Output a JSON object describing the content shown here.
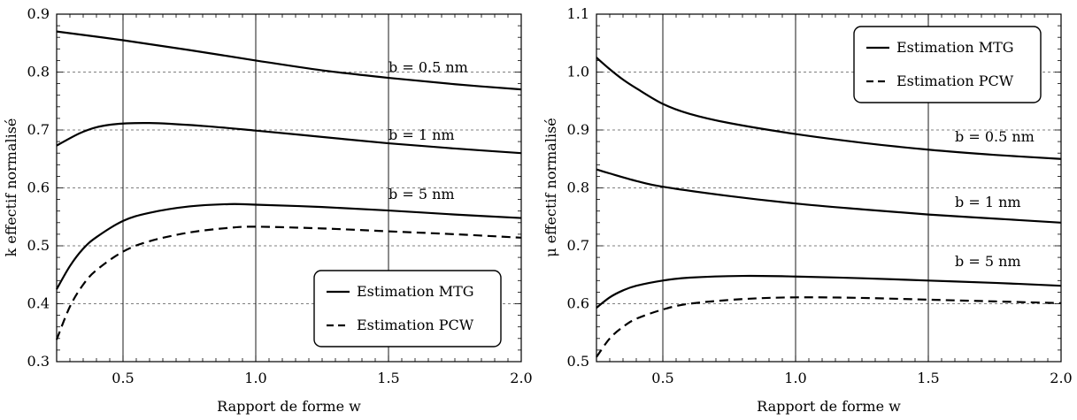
{
  "chart_data": [
    {
      "type": "line",
      "xlabel": "Rapport de forme w",
      "ylabel": "k effectif normalisé",
      "xlim": [
        0.25,
        2.0
      ],
      "ylim": [
        0.3,
        0.9
      ],
      "xticks": [
        "0.5",
        "1.0",
        "1.5",
        "2.0"
      ],
      "yticks": [
        "0.3",
        "0.4",
        "0.5",
        "0.6",
        "0.7",
        "0.8",
        "0.9"
      ],
      "xtick_values": [
        0.5,
        1.0,
        1.5,
        2.0
      ],
      "ytick_values": [
        0.3,
        0.4,
        0.5,
        0.6,
        0.7,
        0.8,
        0.9
      ],
      "grid": "vertical solid at major x ticks, horizontal dashed at major y ticks",
      "legend_position": "bottom-right",
      "legend": [
        {
          "label": "Estimation MTG",
          "style": "solid"
        },
        {
          "label": "Estimation PCW",
          "style": "dashed"
        }
      ],
      "series": [
        {
          "label": "b = 0.5 nm",
          "style": "solid",
          "x": [
            0.25,
            0.5,
            0.75,
            1.0,
            1.25,
            1.5,
            1.75,
            2.0
          ],
          "y": [
            0.87,
            0.855,
            0.838,
            0.82,
            0.803,
            0.79,
            0.779,
            0.77
          ],
          "label_x": 1.5,
          "label_y": 0.8
        },
        {
          "label": "b = 1 nm",
          "style": "solid",
          "x": [
            0.25,
            0.35,
            0.45,
            0.6,
            0.8,
            1.0,
            1.25,
            1.5,
            1.75,
            2.0
          ],
          "y": [
            0.673,
            0.697,
            0.709,
            0.712,
            0.707,
            0.699,
            0.688,
            0.677,
            0.668,
            0.66
          ],
          "label_x": 1.5,
          "label_y": 0.683
        },
        {
          "label": "b = 5 nm",
          "style": "solid",
          "x": [
            0.25,
            0.3,
            0.35,
            0.4,
            0.5,
            0.6,
            0.75,
            0.9,
            1.0,
            1.25,
            1.5,
            1.75,
            2.0
          ],
          "y": [
            0.425,
            0.465,
            0.495,
            0.515,
            0.543,
            0.557,
            0.568,
            0.572,
            0.571,
            0.567,
            0.561,
            0.554,
            0.548
          ],
          "label_x": 1.5,
          "label_y": 0.581
        },
        {
          "label": "",
          "style": "dashed",
          "x": [
            0.25,
            0.3,
            0.35,
            0.4,
            0.5,
            0.6,
            0.75,
            0.9,
            1.0,
            1.25,
            1.5,
            1.75,
            2.0
          ],
          "y": [
            0.338,
            0.395,
            0.433,
            0.458,
            0.49,
            0.508,
            0.523,
            0.531,
            0.533,
            0.53,
            0.525,
            0.52,
            0.514
          ]
        }
      ]
    },
    {
      "type": "line",
      "xlabel": "Rapport de forme w",
      "ylabel": "μ effectif normalisé",
      "xlim": [
        0.25,
        2.0
      ],
      "ylim": [
        0.5,
        1.1
      ],
      "xticks": [
        "0.5",
        "1.0",
        "1.5",
        "2.0"
      ],
      "yticks": [
        "0.5",
        "0.6",
        "0.7",
        "0.8",
        "0.9",
        "1.0",
        "1.1"
      ],
      "xtick_values": [
        0.5,
        1.0,
        1.5,
        2.0
      ],
      "ytick_values": [
        0.5,
        0.6,
        0.7,
        0.8,
        0.9,
        1.0,
        1.1
      ],
      "grid": "vertical solid at major x ticks, horizontal dashed at major y ticks",
      "legend_position": "top-right",
      "legend": [
        {
          "label": "Estimation MTG",
          "style": "solid"
        },
        {
          "label": "Estimation PCW",
          "style": "dashed"
        }
      ],
      "series": [
        {
          "label": "b = 0.5 nm",
          "style": "solid",
          "x": [
            0.25,
            0.3,
            0.35,
            0.4,
            0.5,
            0.6,
            0.75,
            1.0,
            1.25,
            1.5,
            1.75,
            2.0
          ],
          "y": [
            1.025,
            1.005,
            0.987,
            0.972,
            0.945,
            0.928,
            0.912,
            0.893,
            0.878,
            0.866,
            0.857,
            0.85
          ],
          "label_x": 1.6,
          "label_y": 0.88
        },
        {
          "label": "b = 1 nm",
          "style": "solid",
          "x": [
            0.25,
            0.3,
            0.4,
            0.5,
            0.75,
            1.0,
            1.25,
            1.5,
            1.75,
            2.0
          ],
          "y": [
            0.832,
            0.825,
            0.812,
            0.802,
            0.786,
            0.773,
            0.763,
            0.754,
            0.747,
            0.74
          ],
          "label_x": 1.6,
          "label_y": 0.767
        },
        {
          "label": "b = 5 nm",
          "style": "solid",
          "x": [
            0.25,
            0.3,
            0.35,
            0.4,
            0.5,
            0.6,
            0.8,
            1.0,
            1.25,
            1.5,
            1.75,
            2.0
          ],
          "y": [
            0.593,
            0.611,
            0.623,
            0.631,
            0.64,
            0.645,
            0.648,
            0.647,
            0.644,
            0.64,
            0.636,
            0.631
          ],
          "label_x": 1.6,
          "label_y": 0.665
        },
        {
          "label": "",
          "style": "dashed",
          "x": [
            0.25,
            0.3,
            0.35,
            0.4,
            0.5,
            0.6,
            0.8,
            1.0,
            1.25,
            1.5,
            1.75,
            2.0
          ],
          "y": [
            0.508,
            0.54,
            0.56,
            0.574,
            0.59,
            0.6,
            0.608,
            0.611,
            0.61,
            0.607,
            0.604,
            0.601
          ]
        }
      ]
    }
  ]
}
